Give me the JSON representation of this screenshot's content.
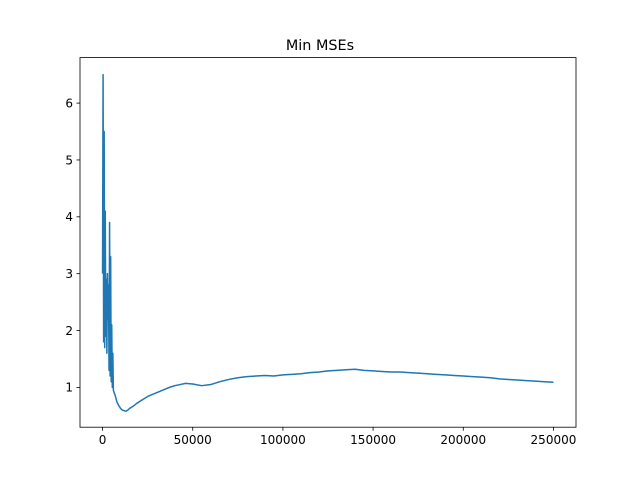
{
  "chart_data": {
    "type": "line",
    "title": "Min MSEs",
    "xlabel": "",
    "ylabel": "",
    "xlim": [
      -12500,
      262500
    ],
    "ylim": [
      0.3,
      6.8
    ],
    "grid": false,
    "legend": "none",
    "x_ticks": [
      0,
      50000,
      100000,
      150000,
      200000,
      250000
    ],
    "x_tick_labels": [
      "0",
      "50000",
      "100000",
      "150000",
      "200000",
      "250000"
    ],
    "y_ticks": [
      1,
      2,
      3,
      4,
      5,
      6
    ],
    "y_tick_labels": [
      "1",
      "2",
      "3",
      "4",
      "5",
      "6"
    ],
    "series": [
      {
        "color": "#1f77b4",
        "x": [
          0,
          300,
          600,
          900,
          1200,
          1500,
          1800,
          2100,
          2400,
          2700,
          3000,
          3300,
          3600,
          3900,
          4200,
          4500,
          4800,
          5100,
          5400,
          5700,
          6000,
          6500,
          7000,
          7500,
          8000,
          9000,
          10000,
          11000,
          12000,
          13000,
          14000,
          15000,
          17000,
          19000,
          21000,
          23000,
          25000,
          28000,
          31000,
          34000,
          37000,
          40000,
          43000,
          46000,
          50000,
          55000,
          60000,
          65000,
          70000,
          75000,
          80000,
          85000,
          90000,
          95000,
          100000,
          105000,
          110000,
          115000,
          120000,
          125000,
          130000,
          135000,
          140000,
          145000,
          150000,
          155000,
          160000,
          165000,
          170000,
          175000,
          180000,
          185000,
          190000,
          195000,
          200000,
          205000,
          210000,
          215000,
          220000,
          225000,
          230000,
          235000,
          240000,
          245000,
          250000
        ],
        "values": [
          3.0,
          6.5,
          1.8,
          5.5,
          1.7,
          4.1,
          1.9,
          2.9,
          1.6,
          3.0,
          2.2,
          2.8,
          1.3,
          3.9,
          1.2,
          3.3,
          1.1,
          2.1,
          1.0,
          1.6,
          0.95,
          0.9,
          0.86,
          0.8,
          0.74,
          0.68,
          0.63,
          0.6,
          0.59,
          0.58,
          0.6,
          0.63,
          0.67,
          0.72,
          0.76,
          0.8,
          0.84,
          0.88,
          0.92,
          0.96,
          1.0,
          1.03,
          1.05,
          1.07,
          1.06,
          1.03,
          1.05,
          1.1,
          1.14,
          1.17,
          1.19,
          1.2,
          1.21,
          1.2,
          1.22,
          1.23,
          1.24,
          1.26,
          1.27,
          1.29,
          1.3,
          1.31,
          1.32,
          1.3,
          1.29,
          1.28,
          1.27,
          1.27,
          1.26,
          1.25,
          1.24,
          1.23,
          1.22,
          1.21,
          1.2,
          1.19,
          1.18,
          1.17,
          1.15,
          1.14,
          1.13,
          1.12,
          1.11,
          1.1,
          1.09
        ]
      }
    ]
  }
}
